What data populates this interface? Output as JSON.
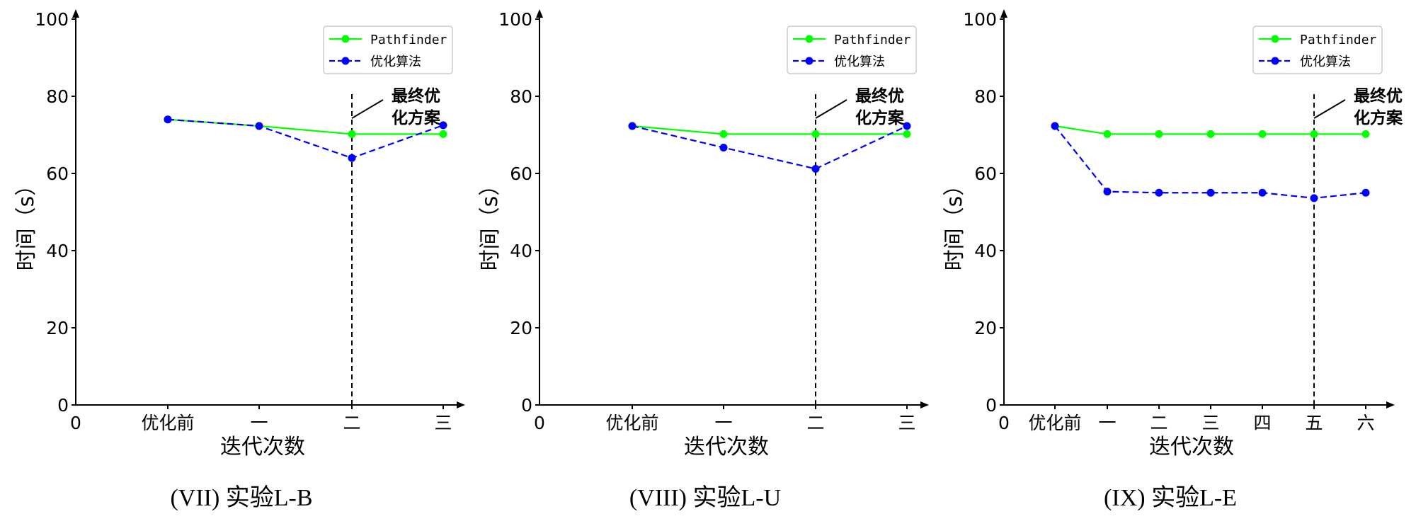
{
  "chart_data": [
    {
      "type": "line",
      "caption": "(VII) 实验L-B",
      "xlabel": "迭代次数",
      "ylabel": "时间（s）",
      "ylim": [
        0,
        100
      ],
      "yticks": [
        0,
        20,
        40,
        60,
        80,
        100
      ],
      "x_origin_label": "0",
      "categories": [
        "优化前",
        "一",
        "二",
        "三"
      ],
      "series": [
        {
          "name": "Pathfinder",
          "color": "#00ff00",
          "style": "solid",
          "values": [
            74,
            72.3,
            70.2,
            70.2
          ]
        },
        {
          "name": "优化算法",
          "color": "#0000ff",
          "style": "dashed",
          "values": [
            74,
            72.3,
            64,
            72.5
          ]
        }
      ],
      "annotation": {
        "text_lines": [
          "最终优",
          "化方案"
        ],
        "category_index": 2
      },
      "legend": "top-right"
    },
    {
      "type": "line",
      "caption": "(VIII) 实验L-U",
      "xlabel": "迭代次数",
      "ylabel": "时间（s）",
      "ylim": [
        0,
        100
      ],
      "yticks": [
        0,
        20,
        40,
        60,
        80,
        100
      ],
      "x_origin_label": "0",
      "categories": [
        "优化前",
        "一",
        "二",
        "三"
      ],
      "series": [
        {
          "name": "Pathfinder",
          "color": "#00ff00",
          "style": "solid",
          "values": [
            72.3,
            70.2,
            70.2,
            70.2
          ]
        },
        {
          "name": "优化算法",
          "color": "#0000ff",
          "style": "dashed",
          "values": [
            72.3,
            66.7,
            61.2,
            72.3
          ]
        }
      ],
      "annotation": {
        "text_lines": [
          "最终优",
          "化方案"
        ],
        "category_index": 2
      },
      "legend": "top-right"
    },
    {
      "type": "line",
      "caption": "(IX) 实验L-E",
      "xlabel": "迭代次数",
      "ylabel": "时间（s）",
      "ylim": [
        0,
        100
      ],
      "yticks": [
        0,
        20,
        40,
        60,
        80,
        100
      ],
      "x_origin_label": "0",
      "categories": [
        "优化前",
        "一",
        "二",
        "三",
        "四",
        "五",
        "六"
      ],
      "series": [
        {
          "name": "Pathfinder",
          "color": "#00ff00",
          "style": "solid",
          "values": [
            72.3,
            70.2,
            70.2,
            70.2,
            70.2,
            70.2,
            70.2
          ]
        },
        {
          "name": "优化算法",
          "color": "#0000ff",
          "style": "dashed",
          "values": [
            72.3,
            55.3,
            55,
            55,
            55,
            53.6,
            55
          ]
        }
      ],
      "annotation": {
        "text_lines": [
          "最终优",
          "化方案"
        ],
        "category_index": 5
      },
      "legend": "top-right"
    }
  ]
}
